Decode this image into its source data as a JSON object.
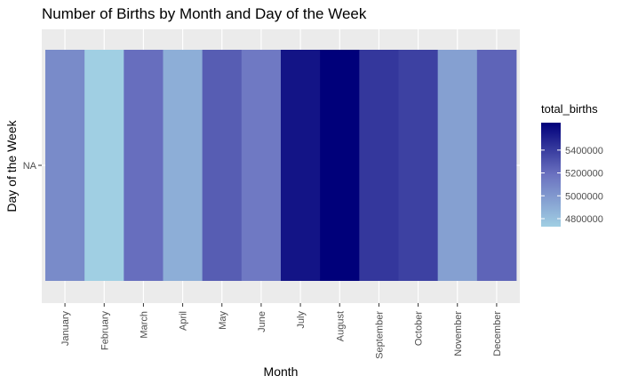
{
  "chart_data": {
    "type": "heatmap",
    "title": "Number of Births by Month and Day of the Week",
    "xlabel": "Month",
    "ylabel": "Day of the Week",
    "x_categories": [
      "January",
      "February",
      "March",
      "April",
      "May",
      "June",
      "July",
      "August",
      "September",
      "October",
      "November",
      "December"
    ],
    "y_categories": [
      "NA"
    ],
    "values": [
      5065000,
      4730000,
      5200000,
      4890000,
      5270000,
      5150000,
      5560000,
      5640000,
      5420000,
      5380000,
      4960000,
      5240000
    ],
    "legend": {
      "title": "total_births",
      "ticks": [
        4800000,
        5000000,
        5200000,
        5400000
      ],
      "tick_labels": [
        "4800000",
        "5000000",
        "5200000",
        "5400000"
      ],
      "range": [
        4730000,
        5640000
      ],
      "placement": "right"
    },
    "colors": {
      "low": "#a0cfe3",
      "mid": "#6b72c0",
      "high": "#00007a",
      "panel_background": "#ebebeb",
      "grid": "#ffffff"
    }
  }
}
